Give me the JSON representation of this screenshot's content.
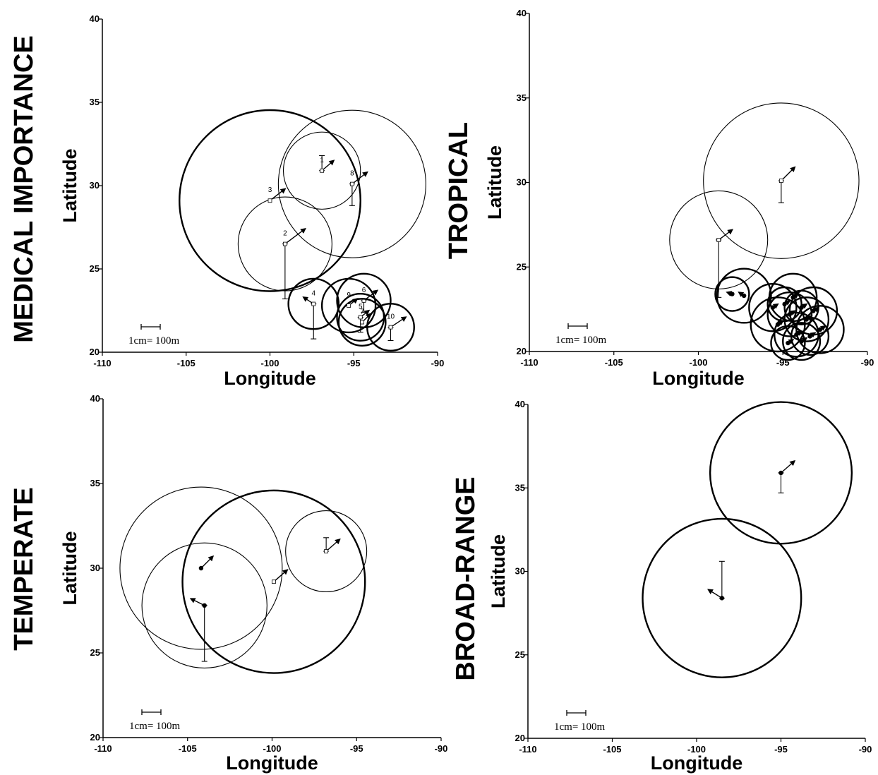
{
  "chart_data": [
    {
      "type": "scatter",
      "title": "MEDICAL IMPORTANCE",
      "xlabel": "Longitude",
      "ylabel": "Latitude",
      "xlim": [
        -110,
        -90
      ],
      "ylim": [
        20,
        40
      ],
      "xticks": [
        "-110",
        "-105",
        "-100",
        "-95",
        "-90"
      ],
      "yticks": [
        "20",
        "25",
        "30",
        "35",
        "40"
      ],
      "scale_label": "1cm= 100m",
      "points": [
        {
          "label": "1",
          "x": -96.9,
          "y": 30.9,
          "r": 2.3,
          "err_lo": 30.9,
          "err_hi": 31.8,
          "arrow_dx": 0.7,
          "arrow_dy": 0.6,
          "thick": false,
          "marker": "open"
        },
        {
          "label": "2",
          "x": -99.1,
          "y": 26.5,
          "r": 2.8,
          "err_lo": 23.2,
          "err_hi": 26.5,
          "arrow_dx": 1.2,
          "arrow_dy": 0.9,
          "thick": false,
          "marker": "open"
        },
        {
          "label": "3",
          "x": -100.0,
          "y": 29.1,
          "r": 5.4,
          "err_lo": 29.1,
          "err_hi": 29.1,
          "arrow_dx": 0.9,
          "arrow_dy": 0.7,
          "thick": true,
          "marker": "open"
        },
        {
          "label": "4",
          "x": -97.4,
          "y": 22.9,
          "r": 1.5,
          "err_lo": 20.8,
          "err_hi": 22.9,
          "arrow_dx": -0.6,
          "arrow_dy": 0.4,
          "thick": true,
          "marker": "open"
        },
        {
          "label": "5",
          "x": -94.6,
          "y": 22.1,
          "r": 1.4,
          "err_lo": 21.2,
          "err_hi": 22.1,
          "arrow_dx": 0.5,
          "arrow_dy": 0.4,
          "thick": true,
          "marker": "open"
        },
        {
          "label": "6",
          "x": -94.4,
          "y": 23.1,
          "r": 1.6,
          "err_lo": 22.4,
          "err_hi": 23.1,
          "arrow_dx": 0.8,
          "arrow_dy": 0.6,
          "thick": true,
          "marker": "open"
        },
        {
          "label": "7",
          "x": -94.5,
          "y": 21.8,
          "r": 1.4,
          "err_lo": 21.8,
          "err_hi": 21.8,
          "arrow_dx": 0.5,
          "arrow_dy": 0.5,
          "thick": true,
          "marker": "open"
        },
        {
          "label": "8",
          "x": -95.1,
          "y": 30.1,
          "r": 4.4,
          "err_lo": 28.8,
          "err_hi": 30.1,
          "arrow_dx": 0.9,
          "arrow_dy": 0.7,
          "thick": false,
          "marker": "open"
        },
        {
          "label": "9",
          "x": -95.3,
          "y": 22.8,
          "r": 1.6,
          "err_lo": 22.8,
          "err_hi": 22.8,
          "arrow_dx": 0.5,
          "arrow_dy": 0.4,
          "thick": true,
          "marker": "open"
        },
        {
          "label": "10",
          "x": -92.8,
          "y": 21.5,
          "r": 1.4,
          "err_lo": 20.7,
          "err_hi": 21.5,
          "arrow_dx": 0.9,
          "arrow_dy": 0.6,
          "thick": true,
          "marker": "open"
        }
      ]
    },
    {
      "type": "scatter",
      "title": "TROPICAL",
      "xlabel": "Longitude",
      "ylabel": "Latitude",
      "xlim": [
        -110,
        -90
      ],
      "ylim": [
        20,
        40
      ],
      "xticks": [
        "-110",
        "-105",
        "-100",
        "-95",
        "-90"
      ],
      "yticks": [
        "20",
        "25",
        "30",
        "35",
        "40"
      ],
      "scale_label": "1cm= 100m",
      "points": [
        {
          "x": -95.1,
          "y": 30.1,
          "r": 4.6,
          "err_lo": 28.8,
          "err_hi": 30.1,
          "arrow_dx": 0.8,
          "arrow_dy": 0.8,
          "thick": false,
          "marker": "open"
        },
        {
          "x": -98.8,
          "y": 26.6,
          "r": 2.9,
          "err_lo": 23.2,
          "err_hi": 26.6,
          "arrow_dx": 0.8,
          "arrow_dy": 0.6,
          "thick": false,
          "marker": "open"
        },
        {
          "x": -97.3,
          "y": 23.3,
          "r": 1.6,
          "err_lo": 23.3,
          "err_hi": 23.3,
          "arrow_dx": -0.3,
          "arrow_dy": 0.2,
          "thick": true,
          "marker": "dot"
        },
        {
          "x": -98.0,
          "y": 23.4,
          "r": 1.0,
          "err_lo": 23.4,
          "err_hi": 23.4,
          "arrow_dx": -0.3,
          "arrow_dy": 0.1,
          "thick": true,
          "marker": "dot"
        },
        {
          "x": -95.6,
          "y": 22.6,
          "r": 1.4,
          "err_lo": 22.6,
          "err_hi": 22.6,
          "arrow_dx": 0.3,
          "arrow_dy": 0.2,
          "thick": true,
          "marker": "dot"
        },
        {
          "x": -94.4,
          "y": 23.2,
          "r": 1.4,
          "err_lo": 23.2,
          "err_hi": 23.2,
          "arrow_dx": 0.3,
          "arrow_dy": 0.2,
          "thick": true,
          "marker": "dot"
        },
        {
          "x": -95.3,
          "y": 21.6,
          "r": 1.6,
          "err_lo": 21.6,
          "err_hi": 21.6,
          "arrow_dx": 0.3,
          "arrow_dy": 0.2,
          "thick": true,
          "marker": "dot"
        },
        {
          "x": -94.6,
          "y": 22.2,
          "r": 1.3,
          "err_lo": 22.2,
          "err_hi": 22.2,
          "arrow_dx": 0.3,
          "arrow_dy": 0.2,
          "thick": true,
          "marker": "dot"
        },
        {
          "x": -93.2,
          "y": 22.4,
          "r": 1.4,
          "err_lo": 22.4,
          "err_hi": 22.4,
          "arrow_dx": 0.3,
          "arrow_dy": 0.2,
          "thick": true,
          "marker": "dot"
        },
        {
          "x": -92.8,
          "y": 21.3,
          "r": 1.4,
          "err_lo": 21.3,
          "err_hi": 21.3,
          "arrow_dx": 0.3,
          "arrow_dy": 0.2,
          "thick": true,
          "marker": "dot"
        },
        {
          "x": -93.6,
          "y": 21.9,
          "r": 1.3,
          "err_lo": 21.9,
          "err_hi": 21.9,
          "arrow_dx": 0.3,
          "arrow_dy": 0.2,
          "thick": true,
          "marker": "dot"
        },
        {
          "x": -94.2,
          "y": 21.0,
          "r": 1.3,
          "err_lo": 21.0,
          "err_hi": 21.0,
          "arrow_dx": 0.3,
          "arrow_dy": 0.2,
          "thick": true,
          "marker": "dot"
        },
        {
          "x": -93.9,
          "y": 20.6,
          "r": 1.1,
          "err_lo": 20.6,
          "err_hi": 20.6,
          "arrow_dx": 0.3,
          "arrow_dy": 0.2,
          "thick": true,
          "marker": "dot"
        },
        {
          "x": -94.7,
          "y": 20.5,
          "r": 1.0,
          "err_lo": 20.5,
          "err_hi": 20.5,
          "arrow_dx": 0.3,
          "arrow_dy": 0.2,
          "thick": true,
          "marker": "dot"
        },
        {
          "x": -93.4,
          "y": 20.9,
          "r": 1.1,
          "err_lo": 20.9,
          "err_hi": 20.9,
          "arrow_dx": 0.3,
          "arrow_dy": 0.2,
          "thick": true,
          "marker": "dot"
        },
        {
          "x": -94.9,
          "y": 22.8,
          "r": 1.0,
          "err_lo": 22.8,
          "err_hi": 22.8,
          "arrow_dx": 0.3,
          "arrow_dy": 0.2,
          "thick": true,
          "marker": "dot"
        },
        {
          "x": -93.9,
          "y": 22.6,
          "r": 1.0,
          "err_lo": 22.6,
          "err_hi": 22.6,
          "arrow_dx": 0.3,
          "arrow_dy": 0.2,
          "thick": true,
          "marker": "dot"
        }
      ]
    },
    {
      "type": "scatter",
      "title": "TEMPERATE",
      "xlabel": "Longitude",
      "ylabel": "Latitude",
      "xlim": [
        -110,
        -90
      ],
      "ylim": [
        20,
        40
      ],
      "xticks": [
        "-110",
        "-105",
        "-100",
        "-95",
        "-90"
      ],
      "yticks": [
        "20",
        "25",
        "30",
        "35",
        "40"
      ],
      "scale_label": "1cm= 100m",
      "points": [
        {
          "x": -104.2,
          "y": 30.0,
          "r": 4.8,
          "err_lo": 30.0,
          "err_hi": 30.0,
          "arrow_dx": 0.7,
          "arrow_dy": 0.7,
          "thick": false,
          "marker": "dot"
        },
        {
          "x": -104.0,
          "y": 27.8,
          "r": 3.7,
          "err_lo": 24.5,
          "err_hi": 27.8,
          "arrow_dx": -0.8,
          "arrow_dy": 0.4,
          "thick": false,
          "marker": "dot"
        },
        {
          "x": -99.9,
          "y": 29.2,
          "r": 5.4,
          "err_lo": 29.2,
          "err_hi": 29.2,
          "arrow_dx": 0.8,
          "arrow_dy": 0.7,
          "thick": true,
          "marker": "open"
        },
        {
          "x": -96.8,
          "y": 31.0,
          "r": 2.4,
          "err_lo": 31.0,
          "err_hi": 31.8,
          "arrow_dx": 0.8,
          "arrow_dy": 0.7,
          "thick": false,
          "marker": "open"
        }
      ]
    },
    {
      "type": "scatter",
      "title": "BROAD-RANGE",
      "xlabel": "Longitude",
      "ylabel": "Latitude",
      "xlim": [
        -110,
        -90
      ],
      "ylim": [
        20,
        40
      ],
      "xticks": [
        "-110",
        "-105",
        "-100",
        "-95",
        "-90"
      ],
      "yticks": [
        "20",
        "25",
        "30",
        "35",
        "40"
      ],
      "scale_label": "1cm= 100m",
      "points": [
        {
          "x": -95.0,
          "y": 35.9,
          "r": 4.2,
          "err_lo": 34.7,
          "err_hi": 35.9,
          "arrow_dx": 0.8,
          "arrow_dy": 0.7,
          "thick": true,
          "marker": "dot"
        },
        {
          "x": -98.5,
          "y": 28.4,
          "r": 4.7,
          "err_lo": 28.4,
          "err_hi": 30.6,
          "arrow_dx": -0.8,
          "arrow_dy": 0.5,
          "thick": true,
          "marker": "dot"
        }
      ]
    }
  ]
}
